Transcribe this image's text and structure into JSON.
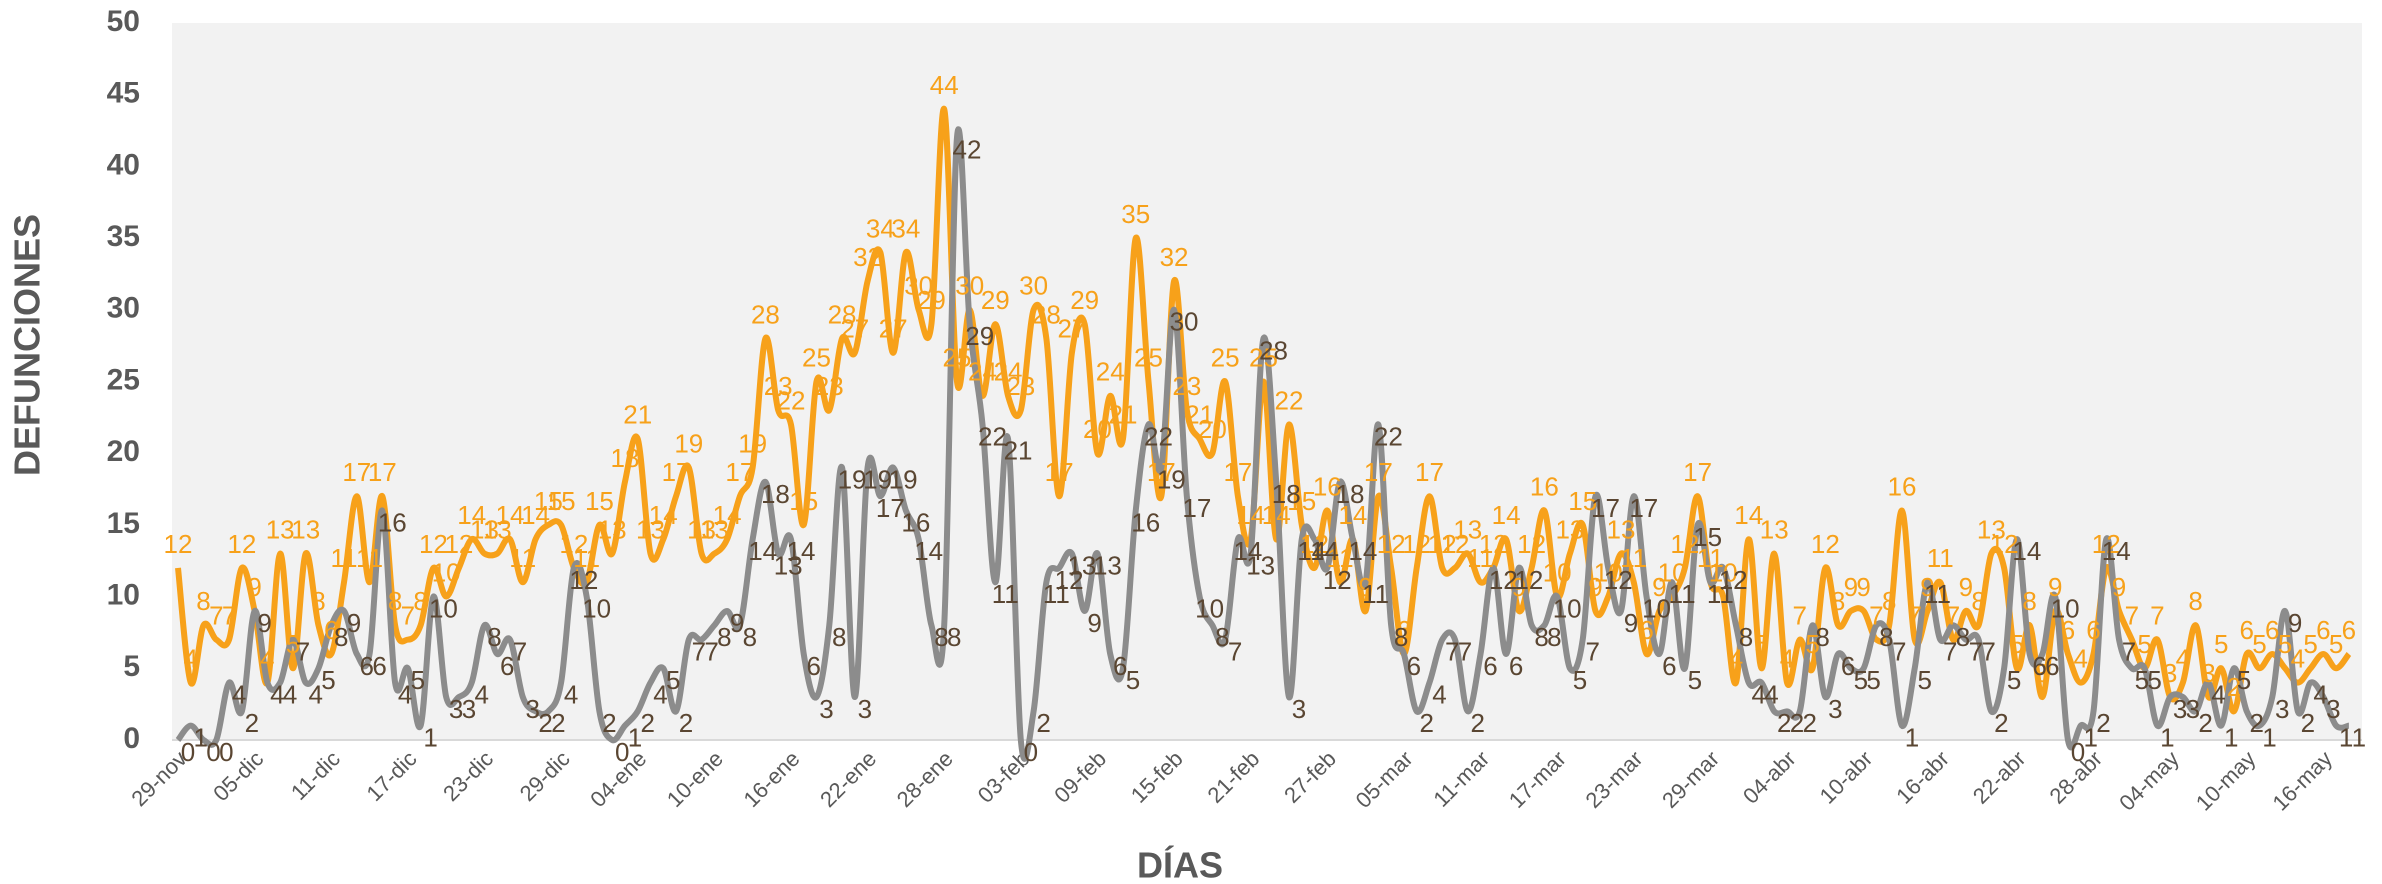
{
  "chart_data": {
    "type": "line",
    "x_label": "DÍAS",
    "y_label": "DEFUNCIONES",
    "ylim": [
      0,
      50
    ],
    "yticks": [
      0,
      5,
      10,
      15,
      20,
      25,
      30,
      35,
      40,
      45,
      50
    ],
    "grid": false,
    "categories": [
      "29-nov",
      null,
      null,
      null,
      null,
      null,
      "05-dic",
      null,
      null,
      null,
      null,
      null,
      "11-dic",
      null,
      null,
      null,
      null,
      null,
      "17-dic",
      null,
      null,
      null,
      null,
      null,
      "23-dic",
      null,
      null,
      null,
      null,
      null,
      "29-dic",
      null,
      null,
      null,
      null,
      null,
      "04-ene",
      null,
      null,
      null,
      null,
      null,
      "10-ene",
      null,
      null,
      null,
      null,
      null,
      "16-ene",
      null,
      null,
      null,
      null,
      null,
      "22-ene",
      null,
      null,
      null,
      null,
      null,
      "28-ene",
      null,
      null,
      null,
      null,
      null,
      "03-feb",
      null,
      null,
      null,
      null,
      null,
      "09-feb",
      null,
      null,
      null,
      null,
      null,
      "15-feb",
      null,
      null,
      null,
      null,
      null,
      "21-feb",
      null,
      null,
      null,
      null,
      null,
      "27-feb",
      null,
      null,
      null,
      null,
      null,
      "05-mar",
      null,
      null,
      null,
      null,
      null,
      "11-mar",
      null,
      null,
      null,
      null,
      null,
      "17-mar",
      null,
      null,
      null,
      null,
      null,
      "23-mar",
      null,
      null,
      null,
      null,
      null,
      "29-mar",
      null,
      null,
      null,
      null,
      null,
      "04-abr",
      null,
      null,
      null,
      null,
      null,
      "10-abr",
      null,
      null,
      null,
      null,
      null,
      "16-abr",
      null,
      null,
      null,
      null,
      null,
      "22-abr",
      null,
      null,
      null,
      null,
      null,
      "28-abr",
      null,
      null,
      null,
      null,
      null,
      "04-may",
      null,
      null,
      null,
      null,
      null,
      "10-may",
      null,
      null,
      null,
      null,
      null,
      "16-may",
      null,
      null
    ],
    "series": [
      {
        "color": "#f7a11a",
        "label_color": "#f7a11a",
        "values": [
          12,
          4,
          8,
          7,
          7,
          12,
          9,
          4,
          13,
          5,
          13,
          8,
          6,
          11,
          17,
          11,
          17,
          8,
          7,
          8,
          12,
          10,
          12,
          14,
          13,
          13,
          14,
          11,
          14,
          15,
          15,
          12,
          11,
          15,
          13,
          18,
          21,
          13,
          14,
          17,
          19,
          13,
          13,
          14,
          17,
          19,
          28,
          23,
          22,
          15,
          25,
          23,
          28,
          27,
          32,
          34,
          27,
          34,
          30,
          29,
          44,
          25,
          30,
          24,
          29,
          24,
          23,
          30,
          28,
          17,
          27,
          29,
          20,
          24,
          21,
          35,
          25,
          17,
          32,
          23,
          21,
          20,
          25,
          17,
          14,
          25,
          14,
          22,
          15,
          12,
          16,
          11,
          14,
          9,
          17,
          12,
          6,
          12,
          17,
          12,
          12,
          13,
          11,
          12,
          14,
          9,
          12,
          16,
          10,
          13,
          15,
          9,
          10,
          13,
          11,
          6,
          9,
          10,
          12,
          17,
          11,
          10,
          4,
          14,
          5,
          13,
          4,
          7,
          5,
          12,
          8,
          9,
          9,
          7,
          8,
          16,
          7,
          9,
          11,
          7,
          9,
          8,
          13,
          12,
          5,
          8,
          3,
          9,
          6,
          4,
          6,
          12,
          9,
          7,
          5,
          7,
          3,
          4,
          8,
          3,
          5,
          2,
          6,
          5,
          6,
          5,
          4,
          5,
          6,
          5,
          6
        ]
      },
      {
        "color": "#8c8c8c",
        "label_color": "#5a4632",
        "values": [
          0,
          1,
          0,
          0,
          4,
          2,
          9,
          4,
          4,
          7,
          4,
          5,
          8,
          9,
          6,
          6,
          16,
          4,
          5,
          1,
          10,
          3,
          3,
          4,
          8,
          6,
          7,
          3,
          2,
          2,
          4,
          12,
          10,
          2,
          0,
          1,
          2,
          4,
          5,
          2,
          7,
          7,
          8,
          9,
          8,
          14,
          18,
          13,
          14,
          6,
          3,
          8,
          19,
          3,
          19,
          17,
          19,
          16,
          14,
          8,
          8,
          42,
          29,
          22,
          11,
          21,
          0,
          2,
          11,
          12,
          13,
          9,
          13,
          6,
          5,
          16,
          22,
          19,
          30,
          17,
          10,
          8,
          7,
          14,
          13,
          28,
          18,
          3,
          14,
          14,
          12,
          18,
          14,
          11,
          22,
          8,
          6,
          2,
          4,
          7,
          7,
          2,
          6,
          12,
          6,
          12,
          8,
          8,
          10,
          5,
          7,
          17,
          12,
          9,
          17,
          10,
          6,
          11,
          5,
          15,
          11,
          12,
          8,
          4,
          4,
          2,
          2,
          2,
          8,
          3,
          6,
          5,
          5,
          8,
          7,
          1,
          5,
          11,
          7,
          8,
          7,
          7,
          2,
          5,
          14,
          6,
          6,
          10,
          0,
          1,
          2,
          14,
          7,
          5,
          5,
          1,
          3,
          3,
          2,
          4,
          1,
          5,
          2,
          1,
          3,
          9,
          2,
          4,
          3,
          1,
          1
        ]
      }
    ]
  }
}
